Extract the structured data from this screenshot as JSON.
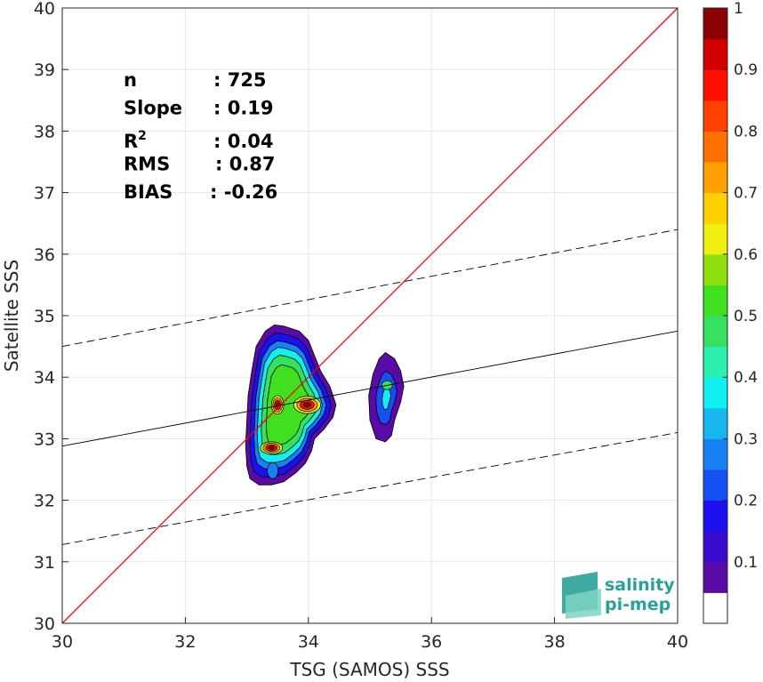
{
  "chart_data": {
    "type": "heatmap",
    "xlabel": "TSG (SAMOS) SSS",
    "ylabel": "Satellite SSS",
    "xlim": [
      30,
      40
    ],
    "ylim": [
      30,
      40
    ],
    "xticks": [
      "30",
      "32",
      "34",
      "36",
      "38",
      "40"
    ],
    "yticks": [
      "30",
      "31",
      "32",
      "33",
      "34",
      "35",
      "36",
      "37",
      "38",
      "39",
      "40"
    ],
    "grid": true,
    "stats": [
      {
        "label": "n",
        "value": ": 725"
      },
      {
        "label": "Slope",
        "value": ": 0.19"
      },
      {
        "label": "R",
        "sup": "2",
        "value": ": 0.04"
      },
      {
        "label": "RMS",
        "value": ": 0.87"
      },
      {
        "label": "BIAS",
        "value": ": -0.26"
      }
    ],
    "identity_line": {
      "x": [
        30,
        40
      ],
      "y": [
        30,
        40
      ],
      "color": "#ff0000"
    },
    "fit_line": {
      "x": [
        30,
        40
      ],
      "y": [
        32.88,
        34.75
      ],
      "color": "#000000"
    },
    "fit_upper": {
      "x": [
        30,
        40
      ],
      "y": [
        34.5,
        36.4
      ],
      "style": "dashed"
    },
    "fit_lower": {
      "x": [
        30,
        40
      ],
      "y": [
        31.28,
        33.1
      ],
      "style": "dashed"
    },
    "density_blobs": [
      {
        "name": "main",
        "x": [
          33.6,
          33.85,
          34.0,
          34.1,
          34.2,
          34.35,
          34.45,
          34.4,
          34.25,
          34.1,
          34.05,
          33.95,
          33.8,
          33.6,
          33.4,
          33.2,
          33.05,
          33.0,
          32.98,
          33.0,
          33.02,
          33.08,
          33.15,
          33.3,
          33.45
        ],
        "y": [
          34.83,
          34.75,
          34.6,
          34.35,
          34.1,
          33.85,
          33.55,
          33.35,
          33.15,
          33.0,
          32.8,
          32.6,
          32.45,
          32.3,
          32.25,
          32.25,
          32.35,
          32.55,
          32.9,
          33.3,
          33.7,
          34.1,
          34.5,
          34.75,
          34.85
        ],
        "level": 0.1
      },
      {
        "name": "island",
        "x": [
          35.25,
          35.4,
          35.5,
          35.55,
          35.5,
          35.4,
          35.35,
          35.25,
          35.1,
          35.0,
          34.98,
          35.05,
          35.15
        ],
        "y": [
          34.4,
          34.3,
          34.1,
          33.85,
          33.6,
          33.3,
          33.05,
          32.95,
          33.0,
          33.3,
          33.7,
          34.05,
          34.3
        ],
        "level": 0.1
      }
    ],
    "colorbar": {
      "min": 0,
      "max": 1,
      "ticks": [
        "0.1",
        "0.2",
        "0.3",
        "0.4",
        "0.5",
        "0.6",
        "0.7",
        "0.8",
        "0.9",
        "1"
      ],
      "colors": [
        "#ffffff",
        "#5a0aa6",
        "#3b0ad0",
        "#1a10f0",
        "#1650f5",
        "#1a80f5",
        "#18b6f0",
        "#10f0f0",
        "#2af0b0",
        "#36e060",
        "#40e020",
        "#90e010",
        "#f0f010",
        "#ffd000",
        "#ffa000",
        "#ff7000",
        "#ff4000",
        "#ff1000",
        "#d00000",
        "#8b0000"
      ]
    }
  },
  "logo": {
    "line1": "salinity",
    "line2": "pi-mep"
  }
}
